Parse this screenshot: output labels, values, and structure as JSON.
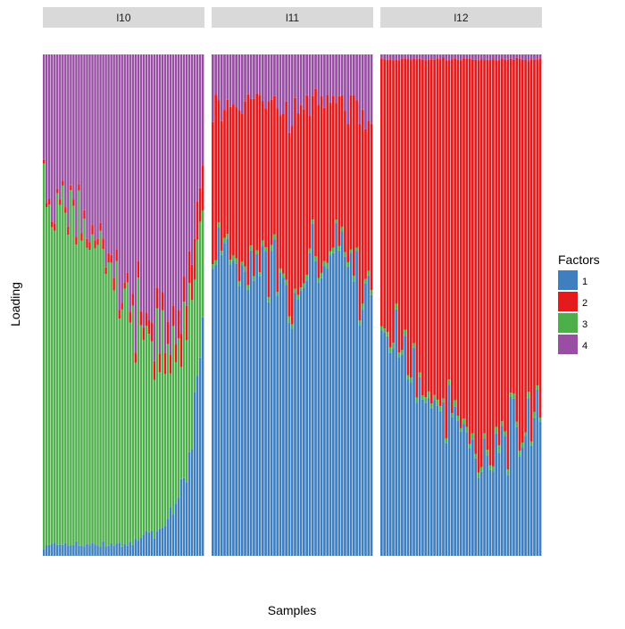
{
  "chart_data": {
    "type": "bar",
    "stacked": true,
    "faceted": true,
    "xlabel": "Samples",
    "ylabel": "Loading",
    "ylim": [
      0,
      1
    ],
    "grid": false,
    "legend": {
      "title": "Factors",
      "placement": "right",
      "entries": [
        {
          "label": "1",
          "color": "#3F7FBF"
        },
        {
          "label": "2",
          "color": "#E41A1C"
        },
        {
          "label": "3",
          "color": "#4DAF4A"
        },
        {
          "label": "4",
          "color": "#984EA3"
        }
      ]
    },
    "stack_order_bottom_to_top": [
      "1",
      "3",
      "2",
      "4"
    ],
    "panels": [
      {
        "label": "l10",
        "n_samples": 60,
        "profiles": {
          "1": [
            [
              0,
              0.02
            ],
            [
              0.45,
              0.02
            ],
            [
              0.75,
              0.05
            ],
            [
              0.9,
              0.15
            ],
            [
              1,
              0.45
            ]
          ],
          "2": [
            [
              0,
              0.01
            ],
            [
              0.5,
              0.02
            ],
            [
              0.8,
              0.04
            ],
            [
              1,
              0.1
            ]
          ],
          "3": [
            [
              0,
              0.7
            ],
            [
              0.2,
              0.64
            ],
            [
              0.4,
              0.57
            ],
            [
              0.6,
              0.44
            ],
            [
              0.75,
              0.35
            ],
            [
              0.9,
              0.28
            ],
            [
              1,
              0.25
            ]
          ],
          "4": [
            [
              0,
              0.27
            ],
            [
              0.2,
              0.33
            ],
            [
              0.4,
              0.39
            ],
            [
              0.6,
              0.5
            ],
            [
              0.75,
              0.56
            ],
            [
              0.9,
              0.53
            ],
            [
              1,
              0.2
            ]
          ]
        }
      },
      {
        "label": "l11",
        "n_samples": 55,
        "profiles": {
          "1": [
            [
              0,
              0.6
            ],
            [
              0.15,
              0.62
            ],
            [
              0.3,
              0.57
            ],
            [
              0.5,
              0.5
            ],
            [
              0.7,
              0.6
            ],
            [
              0.85,
              0.63
            ],
            [
              1,
              0.52
            ]
          ],
          "2": [
            [
              0,
              0.28
            ],
            [
              0.3,
              0.33
            ],
            [
              0.5,
              0.36
            ],
            [
              0.7,
              0.31
            ],
            [
              1,
              0.34
            ]
          ],
          "3": [
            [
              0,
              0.01
            ],
            [
              1,
              0.01
            ]
          ],
          "4": [
            [
              0,
              0.11
            ],
            [
              0.3,
              0.09
            ],
            [
              0.5,
              0.13
            ],
            [
              0.7,
              0.08
            ],
            [
              1,
              0.13
            ]
          ]
        }
      },
      {
        "label": "l12",
        "n_samples": 55,
        "profiles": {
          "1": [
            [
              0,
              0.45
            ],
            [
              0.2,
              0.37
            ],
            [
              0.4,
              0.3
            ],
            [
              0.55,
              0.22
            ],
            [
              0.7,
              0.2
            ],
            [
              0.85,
              0.25
            ],
            [
              1,
              0.28
            ]
          ],
          "2": [
            [
              0,
              0.53
            ],
            [
              0.2,
              0.61
            ],
            [
              0.4,
              0.67
            ],
            [
              0.55,
              0.75
            ],
            [
              0.7,
              0.77
            ],
            [
              0.85,
              0.72
            ],
            [
              1,
              0.7
            ]
          ],
          "3": [
            [
              0,
              0.01
            ],
            [
              1,
              0.01
            ]
          ],
          "4": [
            [
              0,
              0.01
            ],
            [
              1,
              0.01
            ]
          ]
        }
      }
    ]
  }
}
